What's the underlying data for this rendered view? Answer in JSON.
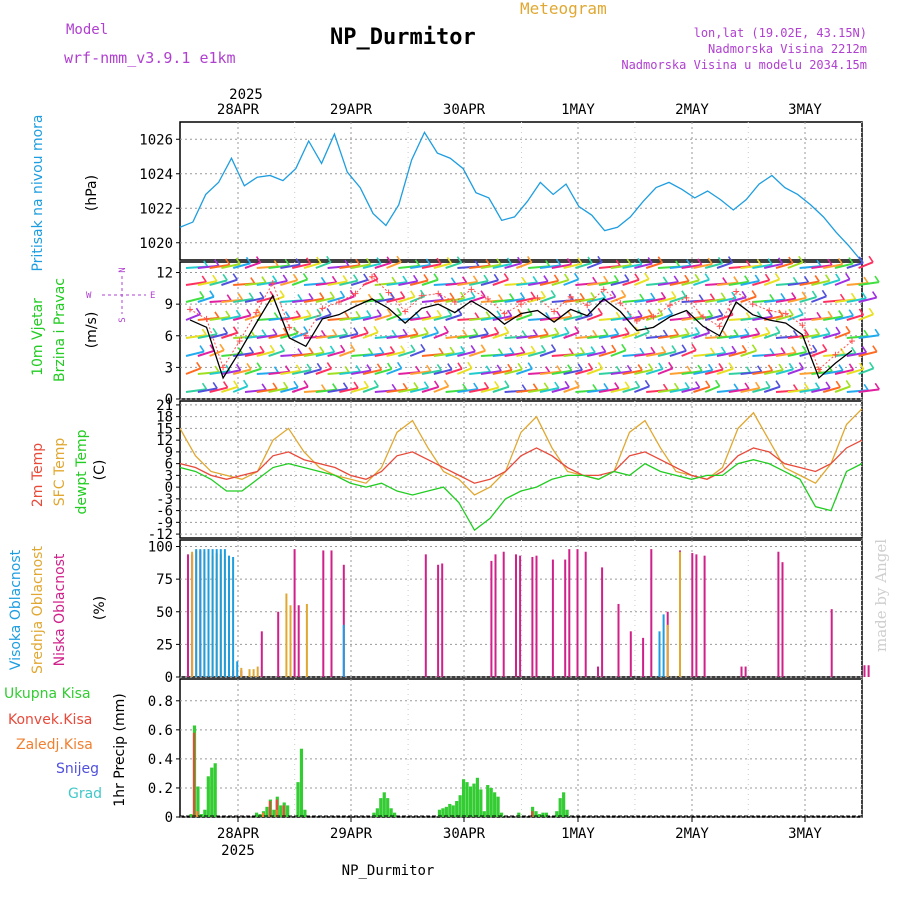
{
  "header": {
    "model_label": "Model",
    "model_name": "wrf-nmm_v3.9.1 e1km",
    "kind": "Meteogram",
    "station": "NP_Durmitor",
    "location": "lon,lat (19.02E, 43.15N)",
    "elevation": "Nadmorska Visina 2212m",
    "model_elevation": "Nadmorska Visina u modelu 2034.15m",
    "footer_station": "NP_Durmitor",
    "watermark": "made by Angel"
  },
  "colors": {
    "pressure": "#1e9ee0",
    "temp2m": "#e84a3a",
    "sfc": "#e0a832",
    "dew": "#22cc22",
    "high_cloud": "#1e9ee0",
    "mid_cloud": "#e0a832",
    "low_cloud": "#d0208a",
    "precip_total": "#33cc33",
    "precip_conv": "#e84a3a",
    "precip_frozen": "#f08030",
    "snow": "#5050dd",
    "graupel": "#40c8c8",
    "wind_speed": "#000000",
    "gust": "#ff5050",
    "purple_text": "#b040d0"
  },
  "chart_data": [
    {
      "type": "line",
      "panel": "pressure",
      "ylabel": "Pritisak na nivou mora",
      "unit": "(hPa)",
      "ylim": [
        1019,
        1027
      ],
      "yticks": [
        1020,
        1022,
        1024,
        1026
      ],
      "x_hours": [
        0,
        3,
        6,
        9,
        12,
        15,
        18,
        21,
        24,
        27,
        30,
        33,
        36,
        39,
        42,
        45,
        48,
        51,
        54,
        57,
        60,
        63,
        66,
        69,
        72,
        75,
        78,
        81,
        84,
        87,
        90,
        93,
        96,
        99,
        102,
        105,
        108,
        111,
        114,
        117,
        120,
        123,
        126,
        129,
        132,
        135,
        138,
        141,
        144,
        147,
        150,
        153,
        156,
        159
      ],
      "values": [
        1020.9,
        1021.2,
        1022.8,
        1023.5,
        1024.9,
        1023.3,
        1023.8,
        1023.9,
        1023.6,
        1024.3,
        1025.9,
        1024.6,
        1026.3,
        1024.1,
        1023.2,
        1021.7,
        1021.0,
        1022.2,
        1024.8,
        1026.4,
        1025.2,
        1024.9,
        1024.3,
        1022.9,
        1022.6,
        1021.3,
        1021.5,
        1022.4,
        1023.5,
        1022.8,
        1023.4,
        1022.1,
        1021.6,
        1020.7,
        1020.9,
        1021.5,
        1022.4,
        1023.2,
        1023.5,
        1023.1,
        1022.6,
        1023.0,
        1022.5,
        1021.9,
        1022.5,
        1023.4,
        1023.9,
        1023.2,
        1022.8,
        1022.2,
        1021.5,
        1020.6,
        1019.8,
        1018.9
      ],
      "xticks": [
        "28APR",
        "29APR",
        "30APR",
        "1MAY",
        "2MAY",
        "3MAY"
      ],
      "year": "2025"
    },
    {
      "type": "line",
      "panel": "wind",
      "ylabel_1": "10m Vjetar",
      "ylabel_2": "Brzina i Pravac",
      "unit": "(m/s)",
      "compass": {
        "n": "N",
        "s": "S",
        "w": "W",
        "e": "E"
      },
      "ylim": [
        0,
        13
      ],
      "yticks": [
        0,
        3,
        6,
        9,
        12
      ],
      "speed": [
        7.5,
        6.8,
        2.0,
        4.5,
        7.2,
        9.8,
        5.8,
        5.0,
        7.6,
        8.0,
        8.8,
        9.5,
        8.6,
        7.2,
        8.6,
        9.0,
        8.2,
        9.3,
        8.4,
        7.1,
        8.1,
        8.4,
        7.3,
        8.5,
        7.9,
        9.5,
        8.3,
        6.5,
        6.8,
        7.8,
        8.4,
        6.9,
        6.0,
        9.2,
        8.0,
        7.5,
        7.2,
        6.1,
        2.0,
        3.4,
        4.6
      ],
      "gust": [
        8.5,
        7.6,
        3.0,
        5.5,
        8.2,
        11.0,
        6.8,
        6.0,
        8.6,
        9.2,
        10.0,
        11.6,
        10.1,
        8.3,
        9.8,
        10.0,
        9.2,
        10.4,
        9.5,
        8.1,
        9.0,
        9.6,
        8.3,
        9.7,
        8.9,
        10.4,
        9.1,
        7.4,
        7.8,
        8.9,
        9.6,
        7.8,
        6.9,
        10.2,
        9.0,
        8.4,
        8.1,
        7.0,
        2.8,
        4.2,
        5.5
      ]
    },
    {
      "type": "line",
      "panel": "temperature",
      "label_t2m": "2m Temp",
      "label_sfc": "SFC Temp",
      "label_dew": "dewpt Temp",
      "unit": "(C)",
      "ylim": [
        -13,
        22
      ],
      "yticks": [
        -12,
        -9,
        -6,
        -3,
        0,
        3,
        6,
        9,
        12,
        15,
        18,
        21
      ],
      "t2m": [
        6,
        5,
        3,
        2,
        3,
        4,
        8,
        9,
        7,
        6,
        5,
        3,
        2,
        4,
        8,
        9,
        7,
        5,
        3,
        1,
        2,
        4,
        8,
        10,
        8,
        5,
        3,
        3,
        4,
        8,
        9,
        7,
        5,
        3,
        2,
        4,
        8,
        10,
        9,
        6,
        5,
        4,
        6,
        10,
        12
      ],
      "sfc": [
        15,
        8,
        4,
        3,
        2,
        4,
        12,
        15,
        9,
        5,
        3,
        2,
        1,
        5,
        14,
        17,
        10,
        4,
        2,
        -2,
        0,
        4,
        14,
        18,
        10,
        4,
        3,
        2,
        4,
        14,
        17,
        10,
        4,
        3,
        2,
        5,
        15,
        19,
        12,
        5,
        3,
        1,
        6,
        16,
        20
      ],
      "dew": [
        5,
        4,
        2,
        -1,
        -1,
        2,
        5,
        6,
        5,
        4,
        3,
        1,
        0,
        1,
        -1,
        -2,
        -1,
        0,
        -4,
        -11,
        -8,
        -3,
        -1,
        0,
        2,
        3,
        3,
        2,
        4,
        3,
        6,
        4,
        3,
        2,
        3,
        3,
        6,
        7,
        6,
        4,
        2,
        -5,
        -6,
        4,
        6
      ]
    },
    {
      "type": "bar",
      "panel": "cloud",
      "label_high": "Visoka Oblacnost",
      "label_mid": "Srednja Oblacnost",
      "label_low": "Niska Oblacnost",
      "unit": "(%)",
      "ylim": [
        0,
        105
      ],
      "yticks": [
        0,
        25,
        50,
        75,
        100
      ],
      "high": [
        [
          2,
          98
        ],
        [
          3,
          98
        ],
        [
          4,
          98
        ],
        [
          5,
          98
        ],
        [
          6,
          98
        ],
        [
          7,
          98
        ],
        [
          8,
          98
        ],
        [
          9,
          98
        ],
        [
          10,
          93
        ],
        [
          11,
          92
        ],
        [
          12,
          12
        ],
        [
          38,
          40
        ],
        [
          115,
          35
        ],
        [
          116,
          48
        ]
      ],
      "mid": [
        [
          1,
          96
        ],
        [
          2,
          97
        ],
        [
          4,
          96
        ],
        [
          5,
          98
        ],
        [
          6,
          93
        ],
        [
          7,
          95
        ],
        [
          8,
          94
        ],
        [
          9,
          90
        ],
        [
          13,
          7
        ],
        [
          15,
          6
        ],
        [
          16,
          6
        ],
        [
          17,
          8
        ],
        [
          24,
          64
        ],
        [
          25,
          55
        ],
        [
          29,
          56
        ],
        [
          117,
          40
        ],
        [
          120,
          96
        ]
      ],
      "low": [
        [
          0,
          94
        ],
        [
          1,
          94
        ],
        [
          3,
          97
        ],
        [
          11,
          5
        ],
        [
          13,
          5
        ],
        [
          18,
          35
        ],
        [
          22,
          50
        ],
        [
          26,
          98
        ],
        [
          27,
          55
        ],
        [
          33,
          97
        ],
        [
          35,
          97
        ],
        [
          38,
          86
        ],
        [
          58,
          94
        ],
        [
          61,
          86
        ],
        [
          62,
          87
        ],
        [
          74,
          89
        ],
        [
          75,
          94
        ],
        [
          77,
          96
        ],
        [
          80,
          94
        ],
        [
          81,
          93
        ],
        [
          84,
          92
        ],
        [
          85,
          93
        ],
        [
          89,
          90
        ],
        [
          92,
          90
        ],
        [
          93,
          98
        ],
        [
          95,
          98
        ],
        [
          97,
          96
        ],
        [
          100,
          8
        ],
        [
          101,
          84
        ],
        [
          105,
          56
        ],
        [
          108,
          35
        ],
        [
          111,
          30
        ],
        [
          113,
          98
        ],
        [
          117,
          50
        ],
        [
          120,
          97
        ],
        [
          123,
          95
        ],
        [
          124,
          94
        ],
        [
          126,
          93
        ],
        [
          135,
          8
        ],
        [
          136,
          8
        ],
        [
          144,
          96
        ],
        [
          145,
          88
        ],
        [
          157,
          52
        ],
        [
          165,
          9
        ],
        [
          166,
          9
        ]
      ]
    },
    {
      "type": "bar",
      "panel": "precip",
      "legend": [
        "Ukupna Kisa",
        "Konvek.Kisa",
        "Zaledj.Kisa",
        "Snijeg",
        "Grad"
      ],
      "ylabel": "1hr Precip (mm)",
      "ylim": [
        0,
        0.95
      ],
      "yticks": [
        0,
        0.2,
        0.4,
        0.6,
        0.8
      ],
      "total": [
        [
          1,
          0.02
        ],
        [
          2,
          0.63
        ],
        [
          3,
          0.21
        ],
        [
          4,
          0.02
        ],
        [
          5,
          0.05
        ],
        [
          6,
          0.28
        ],
        [
          7,
          0.34
        ],
        [
          8,
          0.37
        ],
        [
          20,
          0.03
        ],
        [
          21,
          0.02
        ],
        [
          22,
          0.04
        ],
        [
          23,
          0.07
        ],
        [
          24,
          0.12
        ],
        [
          25,
          0.05
        ],
        [
          26,
          0.14
        ],
        [
          27,
          0.08
        ],
        [
          28,
          0.1
        ],
        [
          29,
          0.08
        ],
        [
          32,
          0.24
        ],
        [
          33,
          0.47
        ],
        [
          34,
          0.05
        ],
        [
          54,
          0.03
        ],
        [
          55,
          0.06
        ],
        [
          56,
          0.13
        ],
        [
          57,
          0.17
        ],
        [
          58,
          0.13
        ],
        [
          59,
          0.06
        ],
        [
          60,
          0.03
        ],
        [
          73,
          0.05
        ],
        [
          74,
          0.06
        ],
        [
          75,
          0.07
        ],
        [
          76,
          0.09
        ],
        [
          77,
          0.08
        ],
        [
          78,
          0.11
        ],
        [
          79,
          0.15
        ],
        [
          80,
          0.26
        ],
        [
          81,
          0.24
        ],
        [
          82,
          0.21
        ],
        [
          83,
          0.23
        ],
        [
          84,
          0.27
        ],
        [
          85,
          0.19
        ],
        [
          86,
          0.04
        ],
        [
          87,
          0.22
        ],
        [
          88,
          0.2
        ],
        [
          89,
          0.17
        ],
        [
          90,
          0.14
        ],
        [
          91,
          0.03
        ],
        [
          96,
          0.03
        ],
        [
          100,
          0.07
        ],
        [
          101,
          0.04
        ],
        [
          102,
          0.02
        ],
        [
          103,
          0.03
        ],
        [
          104,
          0.03
        ],
        [
          107,
          0.04
        ],
        [
          108,
          0.13
        ],
        [
          109,
          0.17
        ],
        [
          110,
          0.05
        ]
      ],
      "conv": [
        [
          2,
          0.58
        ],
        [
          24,
          0.11
        ],
        [
          26,
          0.12
        ],
        [
          28,
          0.08
        ],
        [
          100,
          0.04
        ]
      ],
      "frozen": [
        [
          3,
          0.04
        ],
        [
          22,
          0.03
        ],
        [
          26,
          0.05
        ]
      ]
    }
  ]
}
